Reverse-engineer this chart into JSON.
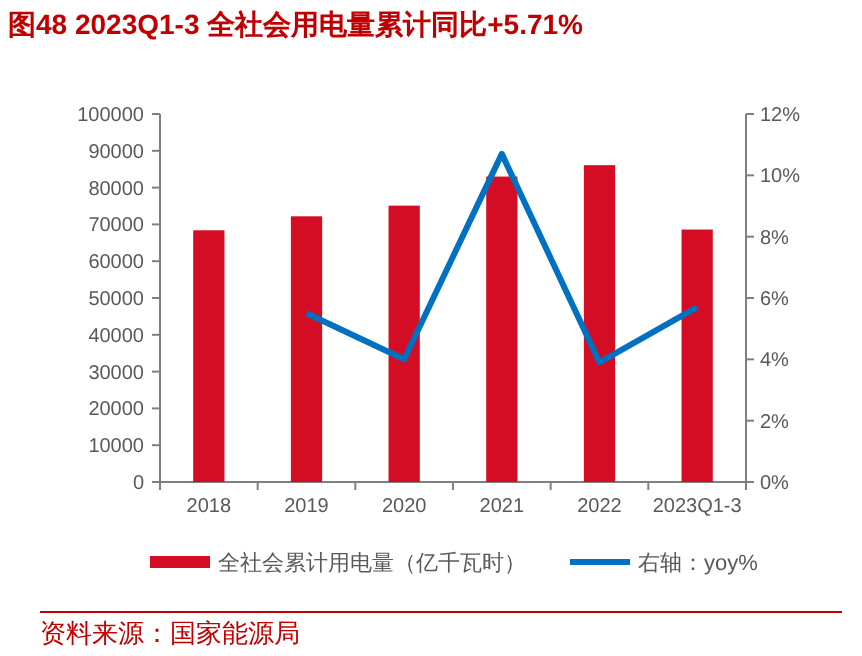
{
  "chart_data": {
    "type": "bar",
    "title": "图48  2023Q1-3 全社会用电量累计同比+5.71%",
    "categories": [
      "2018",
      "2019",
      "2020",
      "2021",
      "2022",
      "2023Q1-3"
    ],
    "series": [
      {
        "name": "全社会累计用电量（亿千瓦时）",
        "color": "#d40d24",
        "values": [
          68400,
          72200,
          75100,
          83000,
          86100,
          68600
        ]
      },
      {
        "name": "右轴：yoy%",
        "type": "line",
        "axis": "y2",
        "color": "#0070c0",
        "values": [
          null,
          5.5,
          4.0,
          10.7,
          3.9,
          5.7
        ]
      }
    ],
    "ylim": [
      0,
      100000
    ],
    "yticks": [
      0,
      10000,
      20000,
      30000,
      40000,
      50000,
      60000,
      70000,
      80000,
      90000,
      100000
    ],
    "y2lim": [
      0,
      12
    ],
    "y2ticks": [
      {
        "value": 0,
        "label": "0%"
      },
      {
        "value": 2,
        "label": "2%"
      },
      {
        "value": 4,
        "label": "4%"
      },
      {
        "value": 6,
        "label": "6%"
      },
      {
        "value": 8,
        "label": "8%"
      },
      {
        "value": 10,
        "label": "10%"
      },
      {
        "value": 12,
        "label": "12%"
      }
    ],
    "legend": "bottom",
    "grid": false,
    "annotations": [
      "资料来源：国家能源局"
    ]
  }
}
